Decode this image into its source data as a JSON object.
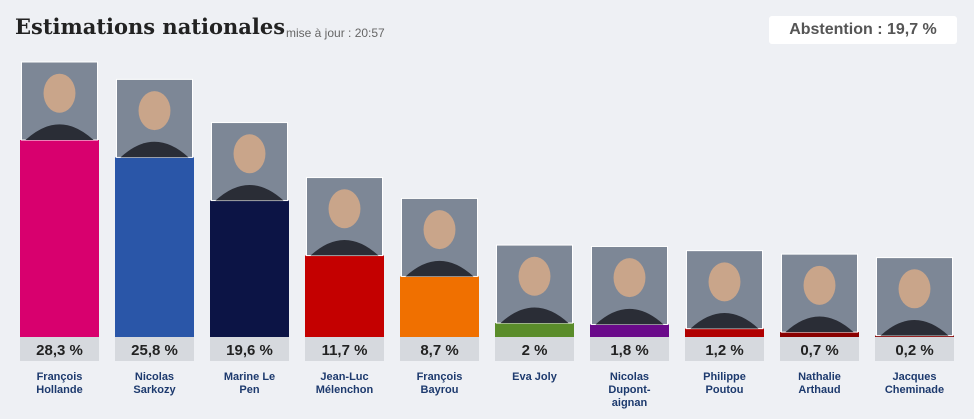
{
  "header": {
    "title": "Estimations nationales",
    "update": "mise à jour : 20:57",
    "abstention": "Abstention : 19,7 %"
  },
  "chart_data": {
    "type": "bar",
    "title": "Estimations nationales",
    "xlabel": "",
    "ylabel": "",
    "ylim": [
      0,
      28.3
    ],
    "grid": false,
    "legend": "none",
    "categories": [
      [
        "François",
        "Hollande"
      ],
      [
        "Nicolas",
        "Sarkozy"
      ],
      [
        "Marine Le",
        "Pen"
      ],
      [
        "Jean-Luc",
        "Mélenchon"
      ],
      [
        "François",
        "Bayrou"
      ],
      [
        "Eva Joly"
      ],
      [
        "Nicolas",
        "Dupont-",
        "aignan"
      ],
      [
        "Philippe",
        "Poutou"
      ],
      [
        "Nathalie",
        "Arthaud"
      ],
      [
        "Jacques",
        "Cheminade"
      ]
    ],
    "values": [
      28.3,
      25.8,
      19.6,
      11.7,
      8.7,
      2,
      1.8,
      1.2,
      0.7,
      0.2
    ],
    "value_labels": [
      "28,3 %",
      "25,8 %",
      "19,6 %",
      "11,7 %",
      "8,7 %",
      "2 %",
      "1,8 %",
      "1,2 %",
      "0,7 %",
      "0,2 %"
    ],
    "colors": [
      "#d8006e",
      "#2a56a8",
      "#0c1445",
      "#c40000",
      "#f07000",
      "#5a8c2a",
      "#6a0a8a",
      "#b00000",
      "#8a0000",
      "#8a0a0a"
    ],
    "image_descriptions": [
      "portrait-hollande",
      "portrait-sarkozy",
      "portrait-le-pen",
      "portrait-melenchon",
      "portrait-bayrou",
      "portrait-joly",
      "portrait-dupont-aignan",
      "portrait-poutou",
      "portrait-arthaud",
      "portrait-cheminade"
    ]
  }
}
